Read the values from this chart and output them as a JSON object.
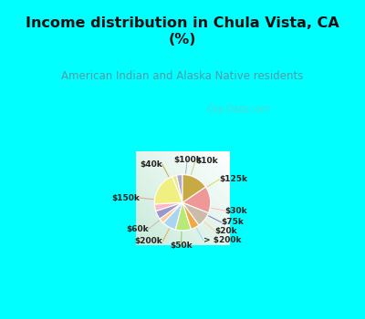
{
  "title": "Income distribution in Chula Vista, CA\n(%)",
  "subtitle": "American Indian and Alaska Native residents",
  "title_color": "#111111",
  "subtitle_color": "#5599aa",
  "labels": [
    "$100k",
    "$10k",
    "$125k",
    "$30k",
    "$75k",
    "$20k",
    "> $200k",
    "$50k",
    "$200k",
    "$60k",
    "$150k",
    "$40k"
  ],
  "values": [
    3.5,
    2.5,
    20.0,
    4.0,
    5.0,
    3.0,
    8.0,
    9.0,
    5.0,
    9.0,
    15.5,
    15.5
  ],
  "colors": [
    "#b0a8d0",
    "#e8e888",
    "#f0f080",
    "#ffb8c8",
    "#9898cc",
    "#ffcc99",
    "#aad4f0",
    "#b8e878",
    "#f0aa44",
    "#ccbbaa",
    "#f09898",
    "#c8aa44"
  ],
  "line_colors": [
    "#b0a8d0",
    "#c8cc88",
    "#d8d860",
    "#ffb8c8",
    "#7878bb",
    "#ffcc99",
    "#aad4f0",
    "#88cc55",
    "#f0aa44",
    "#ccbbaa",
    "#f09898",
    "#c8aa44"
  ],
  "startangle": 90,
  "watermark": "City-Data.com"
}
